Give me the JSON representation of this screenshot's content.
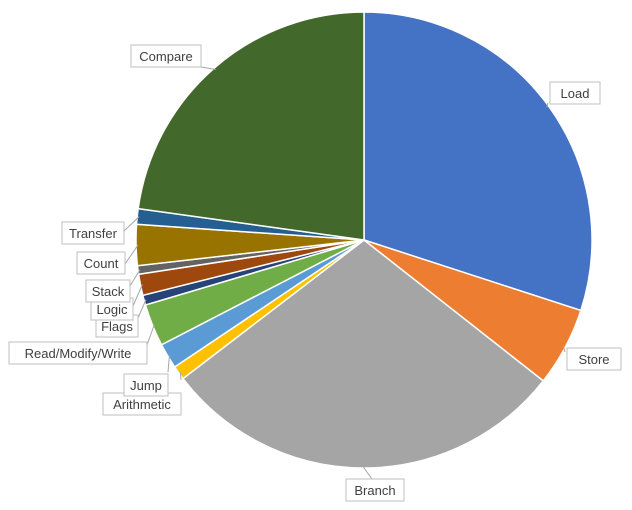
{
  "chart_data": {
    "type": "pie",
    "title": "",
    "slices": [
      {
        "label": "Load",
        "value": 30.0,
        "color": "#4472c4"
      },
      {
        "label": "Store",
        "value": 5.6,
        "color": "#ed7d31"
      },
      {
        "label": "Branch",
        "value": 29.0,
        "color": "#a5a5a5"
      },
      {
        "label": "Arithmetic",
        "value": 1.0,
        "color": "#ffc000"
      },
      {
        "label": "Jump",
        "value": 1.8,
        "color": "#5b9bd5"
      },
      {
        "label": "Read/Modify/Write",
        "value": 3.0,
        "color": "#70ad47"
      },
      {
        "label": "Flags",
        "value": 0.7,
        "color": "#264478"
      },
      {
        "label": "Logic",
        "value": 1.5,
        "color": "#9e480e"
      },
      {
        "label": "Stack",
        "value": 0.6,
        "color": "#636363"
      },
      {
        "label": "Count",
        "value": 2.9,
        "color": "#997300"
      },
      {
        "label": "Transfer",
        "value": 1.1,
        "color": "#255e91"
      },
      {
        "label": "Compare",
        "value": 22.8,
        "color": "#43682b"
      }
    ],
    "start_angle": "12 o'clock",
    "direction": "clockwise",
    "legend": "none (data callout labels)"
  }
}
